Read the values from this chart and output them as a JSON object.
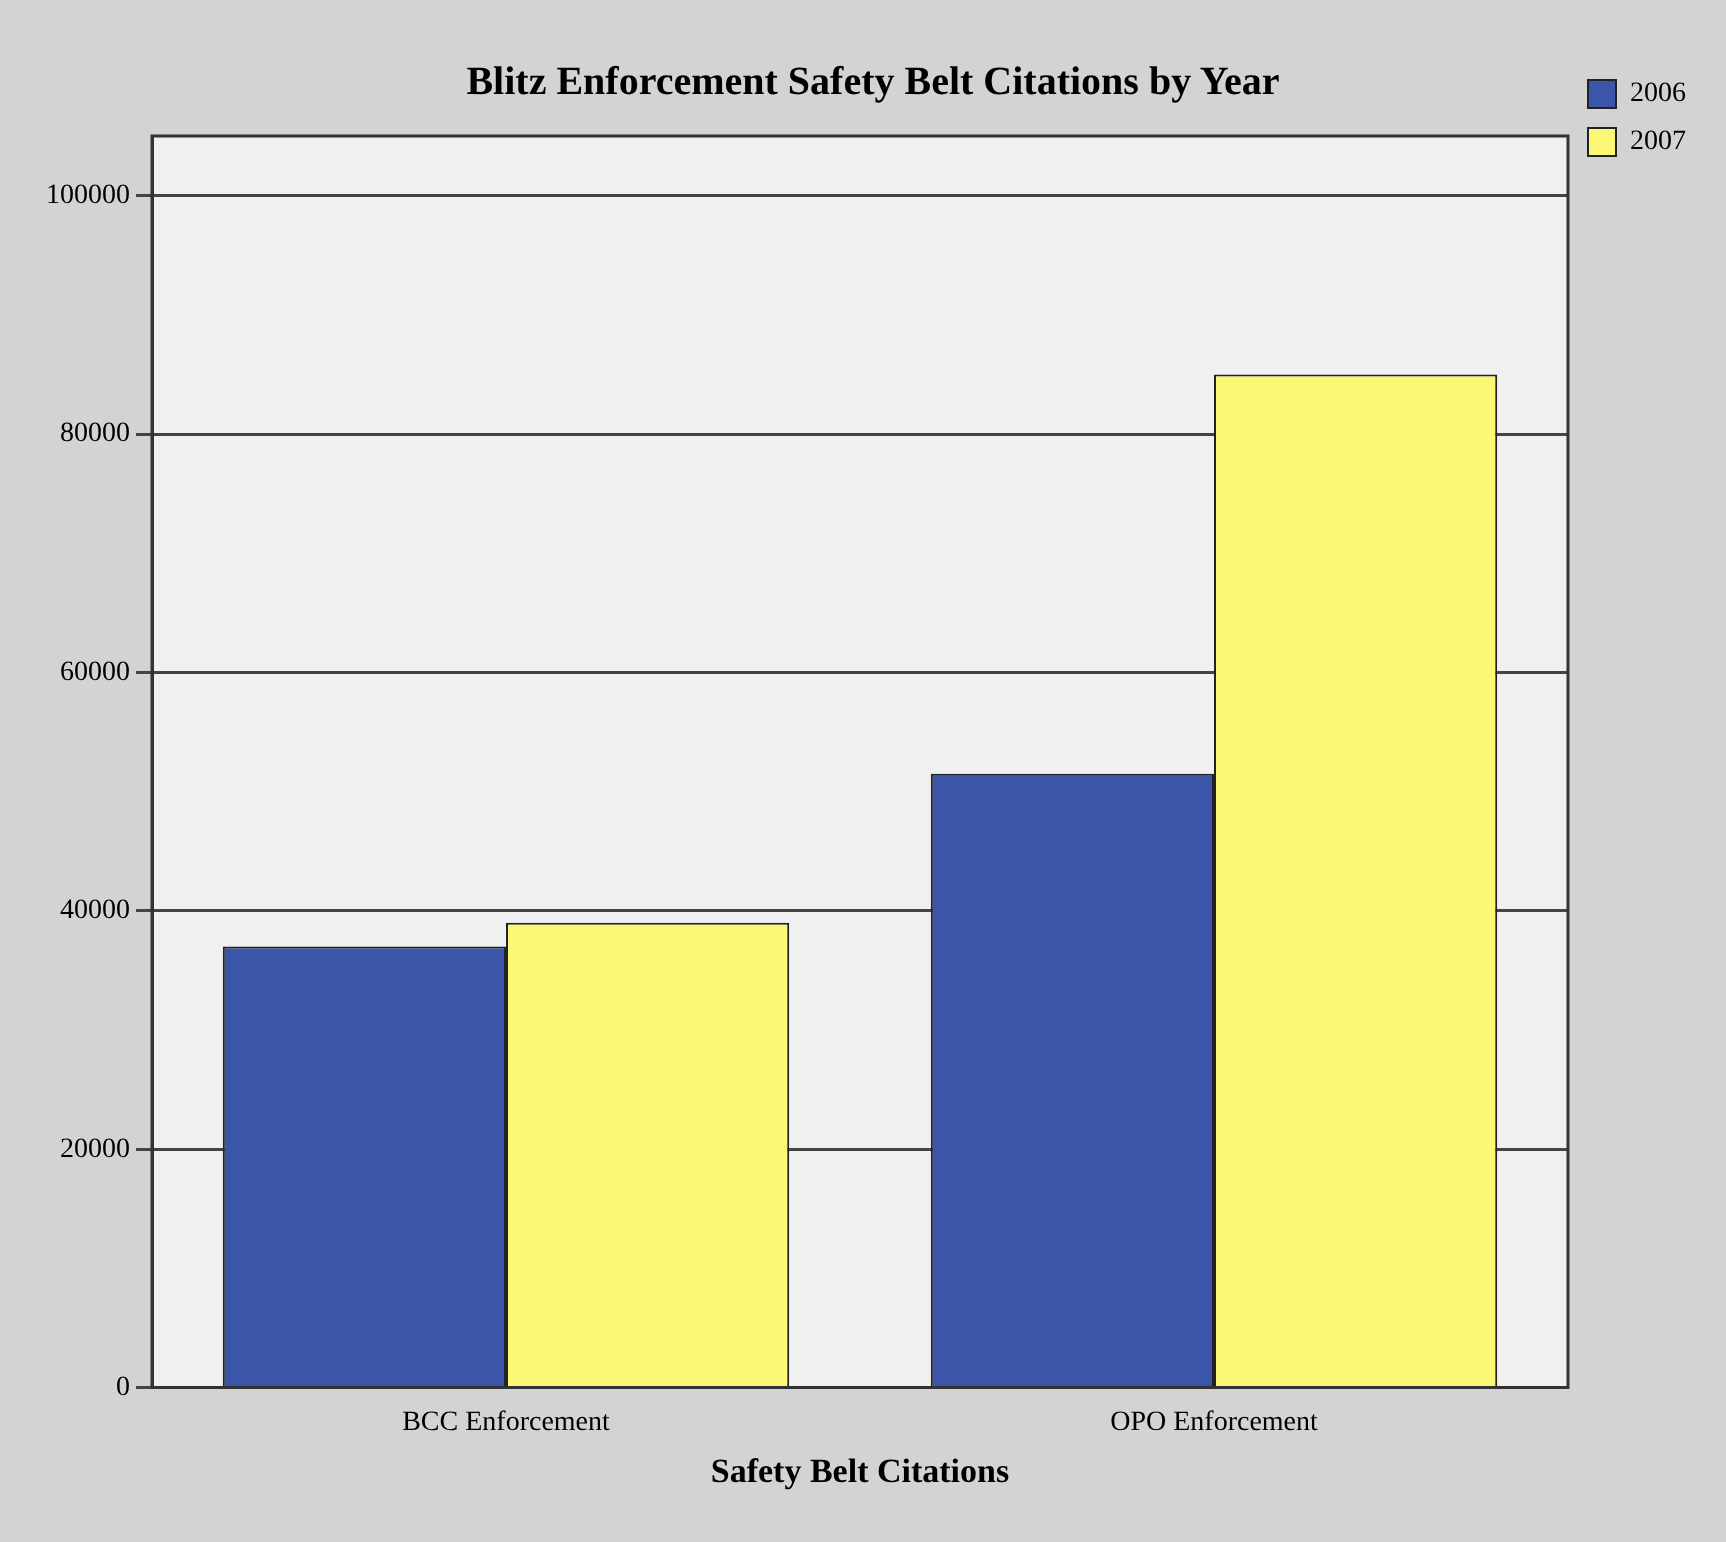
{
  "chart_data": {
    "type": "bar",
    "title": "Blitz Enforcement Safety Belt Citations by Year",
    "xlabel": "Safety Belt Citations",
    "categories": [
      "BCC Enforcement",
      "OPO Enforcement"
    ],
    "series": [
      {
        "name": "2006",
        "color": "#3b56a8",
        "values": [
          37000,
          51500
        ]
      },
      {
        "name": "2007",
        "color": "#faf875",
        "values": [
          39000,
          85000
        ]
      }
    ],
    "ylim": [
      0,
      105000
    ],
    "yticks": [
      0,
      20000,
      40000,
      60000,
      80000,
      100000
    ],
    "grid": "y",
    "legend": "top right"
  }
}
